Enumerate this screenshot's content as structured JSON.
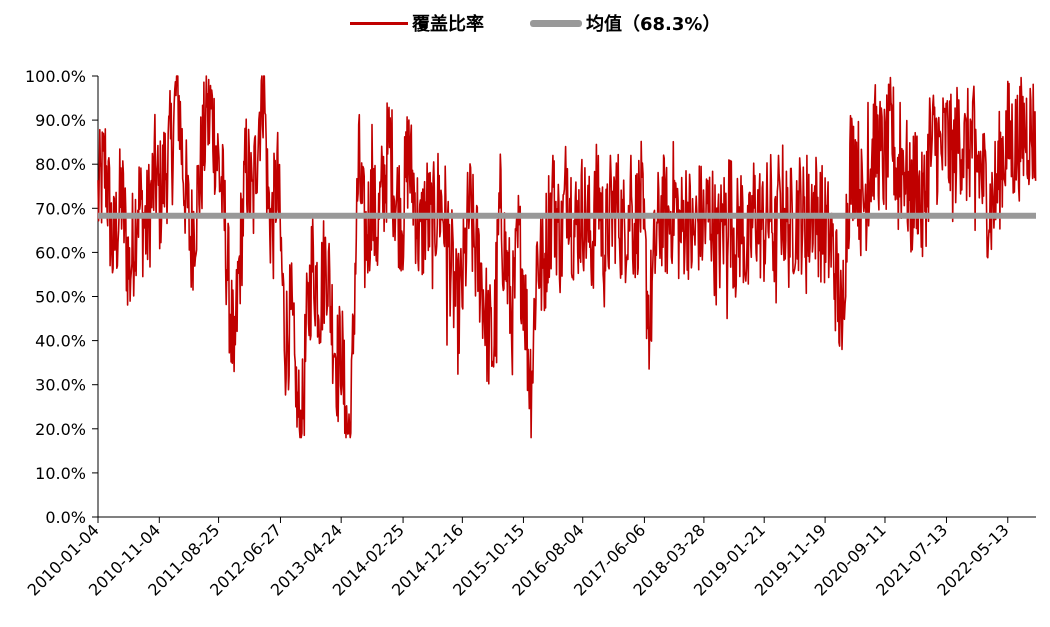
{
  "chart_data": {
    "type": "line",
    "legend": {
      "position": "top-center"
    },
    "series": [
      {
        "name": "覆盖比率",
        "color": "#c00000",
        "kind": "line"
      },
      {
        "name": "均值（68.3%）",
        "color": "#999999",
        "kind": "mean",
        "value": 68.3
      }
    ],
    "y_ticks": [
      "0.0%",
      "10.0%",
      "20.0%",
      "30.0%",
      "40.0%",
      "50.0%",
      "60.0%",
      "70.0%",
      "80.0%",
      "90.0%",
      "100.0%"
    ],
    "ylim": [
      0,
      100
    ],
    "x_ticks": [
      "2010-01-04",
      "2010-11-04",
      "2011-08-25",
      "2012-06-27",
      "2013-04-24",
      "2014-02-25",
      "2014-12-16",
      "2015-10-15",
      "2016-08-04",
      "2017-06-06",
      "2018-03-28",
      "2019-01-21",
      "2019-11-19",
      "2020-09-11",
      "2021-07-13",
      "2022-05-13"
    ],
    "x_range": [
      "2010-01-04",
      "2022-09-30"
    ],
    "grid": false,
    "anchors": [
      [
        "2010-01-04",
        72
      ],
      [
        "2010-02-10",
        80
      ],
      [
        "2010-03-20",
        60
      ],
      [
        "2010-05-01",
        73
      ],
      [
        "2010-06-10",
        55
      ],
      [
        "2010-07-20",
        72
      ],
      [
        "2010-09-01",
        65
      ],
      [
        "2010-10-15",
        78
      ],
      [
        "2010-11-04",
        72
      ],
      [
        "2010-12-10",
        80
      ],
      [
        "2011-01-10",
        85
      ],
      [
        "2011-02-01",
        100
      ],
      [
        "2011-03-01",
        80
      ],
      [
        "2011-04-10",
        62
      ],
      [
        "2011-05-20",
        75
      ],
      [
        "2011-06-20",
        88
      ],
      [
        "2011-07-20",
        92
      ],
      [
        "2011-08-25",
        80
      ],
      [
        "2011-09-20",
        70
      ],
      [
        "2011-10-10",
        55
      ],
      [
        "2011-10-25",
        45
      ],
      [
        "2011-11-10",
        35
      ],
      [
        "2011-12-10",
        60
      ],
      [
        "2012-01-10",
        80
      ],
      [
        "2012-02-10",
        70
      ],
      [
        "2012-03-10",
        90
      ],
      [
        "2012-04-05",
        100
      ],
      [
        "2012-04-25",
        72
      ],
      [
        "2012-05-20",
        65
      ],
      [
        "2012-06-10",
        78
      ],
      [
        "2012-06-27",
        62
      ],
      [
        "2012-07-20",
        40
      ],
      [
        "2012-08-20",
        45
      ],
      [
        "2012-09-15",
        25
      ],
      [
        "2012-10-10",
        18
      ],
      [
        "2012-11-01",
        40
      ],
      [
        "2012-12-01",
        58
      ],
      [
        "2013-01-10",
        50
      ],
      [
        "2013-02-10",
        60
      ],
      [
        "2013-03-10",
        45
      ],
      [
        "2013-04-10",
        33
      ],
      [
        "2013-04-24",
        40
      ],
      [
        "2013-05-15",
        22
      ],
      [
        "2013-06-10",
        18
      ],
      [
        "2013-07-01",
        55
      ],
      [
        "2013-07-20",
        80
      ],
      [
        "2013-08-20",
        62
      ],
      [
        "2013-09-20",
        70
      ],
      [
        "2013-10-20",
        65
      ],
      [
        "2013-11-20",
        75
      ],
      [
        "2013-12-20",
        85
      ],
      [
        "2014-01-20",
        72
      ],
      [
        "2014-02-25",
        68
      ],
      [
        "2014-03-20",
        82
      ],
      [
        "2014-04-20",
        74
      ],
      [
        "2014-05-20",
        62
      ],
      [
        "2014-06-20",
        70
      ],
      [
        "2014-07-20",
        65
      ],
      [
        "2014-08-20",
        72
      ],
      [
        "2014-09-20",
        68
      ],
      [
        "2014-10-20",
        58
      ],
      [
        "2014-11-20",
        45
      ],
      [
        "2014-12-16",
        52
      ],
      [
        "2015-01-20",
        70
      ],
      [
        "2015-02-20",
        60
      ],
      [
        "2015-03-20",
        55
      ],
      [
        "2015-04-20",
        42
      ],
      [
        "2015-05-20",
        38
      ],
      [
        "2015-06-20",
        70
      ],
      [
        "2015-07-20",
        58
      ],
      [
        "2015-08-20",
        45
      ],
      [
        "2015-09-20",
        62
      ],
      [
        "2015-10-15",
        55
      ],
      [
        "2015-11-10",
        35
      ],
      [
        "2015-11-25",
        30
      ],
      [
        "2015-12-20",
        60
      ],
      [
        "2016-01-20",
        55
      ],
      [
        "2016-02-20",
        68
      ],
      [
        "2016-03-20",
        70
      ],
      [
        "2016-04-20",
        62
      ],
      [
        "2016-05-20",
        78
      ],
      [
        "2016-06-20",
        65
      ],
      [
        "2016-07-20",
        68
      ],
      [
        "2016-08-04",
        70
      ],
      [
        "2016-09-20",
        62
      ],
      [
        "2016-10-20",
        75
      ],
      [
        "2016-11-20",
        60
      ],
      [
        "2016-12-20",
        68
      ],
      [
        "2017-01-20",
        72
      ],
      [
        "2017-02-20",
        64
      ],
      [
        "2017-03-20",
        70
      ],
      [
        "2017-04-20",
        66
      ],
      [
        "2017-05-20",
        72
      ],
      [
        "2017-06-06",
        60
      ],
      [
        "2017-07-01",
        44
      ],
      [
        "2017-08-01",
        62
      ],
      [
        "2017-09-01",
        70
      ],
      [
        "2017-10-01",
        66
      ],
      [
        "2017-11-01",
        73
      ],
      [
        "2017-12-01",
        64
      ],
      [
        "2018-01-01",
        70
      ],
      [
        "2018-02-01",
        62
      ],
      [
        "2018-03-01",
        68
      ],
      [
        "2018-03-28",
        66
      ],
      [
        "2018-05-01",
        70
      ],
      [
        "2018-06-01",
        60
      ],
      [
        "2018-07-01",
        66
      ],
      [
        "2018-08-01",
        72
      ],
      [
        "2018-09-01",
        62
      ],
      [
        "2018-10-01",
        68
      ],
      [
        "2018-11-01",
        58
      ],
      [
        "2018-12-01",
        70
      ],
      [
        "2019-01-21",
        65
      ],
      [
        "2019-02-20",
        70
      ],
      [
        "2019-03-20",
        60
      ],
      [
        "2019-04-20",
        72
      ],
      [
        "2019-05-20",
        65
      ],
      [
        "2019-06-20",
        68
      ],
      [
        "2019-07-20",
        70
      ],
      [
        "2019-08-20",
        63
      ],
      [
        "2019-09-20",
        72
      ],
      [
        "2019-10-20",
        68
      ],
      [
        "2019-11-19",
        65
      ],
      [
        "2019-12-20",
        62
      ],
      [
        "2020-01-10",
        55
      ],
      [
        "2020-01-25",
        50
      ],
      [
        "2020-02-10",
        42
      ],
      [
        "2020-02-25",
        60
      ],
      [
        "2020-03-20",
        78
      ],
      [
        "2020-04-20",
        82
      ],
      [
        "2020-05-20",
        70
      ],
      [
        "2020-06-20",
        76
      ],
      [
        "2020-07-20",
        85
      ],
      [
        "2020-08-20",
        82
      ],
      [
        "2020-09-11",
        80
      ],
      [
        "2020-10-15",
        88
      ],
      [
        "2020-11-15",
        76
      ],
      [
        "2020-12-15",
        82
      ],
      [
        "2021-01-15",
        70
      ],
      [
        "2021-02-15",
        78
      ],
      [
        "2021-03-15",
        68
      ],
      [
        "2021-04-15",
        80
      ],
      [
        "2021-05-15",
        86
      ],
      [
        "2021-06-15",
        82
      ],
      [
        "2021-07-13",
        86
      ],
      [
        "2021-08-15",
        80
      ],
      [
        "2021-09-15",
        88
      ],
      [
        "2021-10-15",
        82
      ],
      [
        "2021-11-15",
        86
      ],
      [
        "2021-12-15",
        80
      ],
      [
        "2022-01-15",
        76
      ],
      [
        "2022-02-15",
        70
      ],
      [
        "2022-03-15",
        74
      ],
      [
        "2022-04-15",
        82
      ],
      [
        "2022-05-13",
        86
      ],
      [
        "2022-06-15",
        84
      ],
      [
        "2022-07-15",
        86
      ],
      [
        "2022-08-15",
        88
      ],
      [
        "2022-09-30",
        87
      ]
    ],
    "spikes": [
      [
        "2011-02-01",
        100
      ],
      [
        "2011-06-28",
        93
      ],
      [
        "2011-11-10",
        33
      ],
      [
        "2012-04-05",
        100
      ],
      [
        "2012-09-12",
        25
      ],
      [
        "2012-10-10",
        19
      ],
      [
        "2013-06-10",
        19
      ],
      [
        "2013-05-15",
        25
      ],
      [
        "2013-09-25",
        89
      ],
      [
        "2014-03-25",
        90
      ],
      [
        "2014-10-01",
        39
      ],
      [
        "2015-11-25",
        31
      ],
      [
        "2015-06-05",
        35
      ],
      [
        "2016-03-10",
        82
      ],
      [
        "2016-12-20",
        82
      ],
      [
        "2017-07-01",
        43
      ],
      [
        "2017-04-01",
        82
      ],
      [
        "2018-07-20",
        45
      ],
      [
        "2019-04-01",
        82
      ],
      [
        "2019-08-20",
        82
      ],
      [
        "2020-02-10",
        38
      ],
      [
        "2020-03-25",
        91
      ],
      [
        "2020-06-20",
        94
      ],
      [
        "2020-11-25",
        94
      ],
      [
        "2021-04-20",
        95
      ],
      [
        "2021-07-20",
        90
      ],
      [
        "2021-12-01",
        65
      ],
      [
        "2022-07-20",
        95
      ]
    ]
  }
}
